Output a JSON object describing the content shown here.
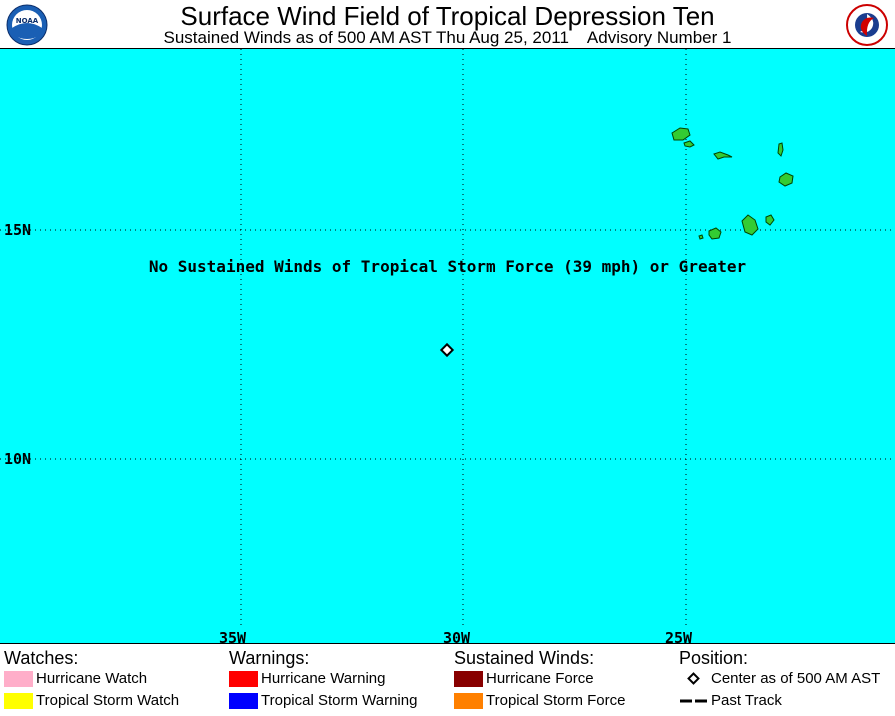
{
  "header": {
    "title": "Surface Wind Field of Tropical Depression Ten",
    "subtitle": "Sustained Winds as of 500 AM AST Thu Aug 25, 2011    Advisory Number 1",
    "logo_left_text": "NOAA",
    "logo_right_text": "NATIONAL WEATHER SERVICE"
  },
  "map": {
    "ocean_color": "#00ffff",
    "land_color": "#33cc33",
    "notice": "No Sustained Winds of Tropical Storm Force (39 mph) or Greater",
    "lat_labels": [
      "15N",
      "10N"
    ],
    "lon_labels": [
      "35W",
      "30W",
      "25W"
    ],
    "center_marker": "storm-center",
    "islands": "Cape Verde Islands"
  },
  "legend": {
    "watches": {
      "heading": "Watches:",
      "items": [
        {
          "label": "Hurricane Watch",
          "color": "#ffaec9"
        },
        {
          "label": "Tropical Storm Watch",
          "color": "#ffff00"
        }
      ]
    },
    "warnings": {
      "heading": "Warnings:",
      "items": [
        {
          "label": "Hurricane Warning",
          "color": "#ff0000"
        },
        {
          "label": "Tropical Storm Warning",
          "color": "#0000ff"
        }
      ]
    },
    "winds": {
      "heading": "Sustained Winds:",
      "items": [
        {
          "label": "Hurricane Force",
          "color": "#880000"
        },
        {
          "label": "Tropical Storm Force",
          "color": "#ff8000"
        }
      ]
    },
    "position": {
      "heading": "Position:",
      "items": [
        {
          "label": "Center as of 500 AM AST",
          "icon": "diamond-icon"
        },
        {
          "label": "Past Track",
          "icon": "dashed-line-icon"
        }
      ]
    }
  }
}
